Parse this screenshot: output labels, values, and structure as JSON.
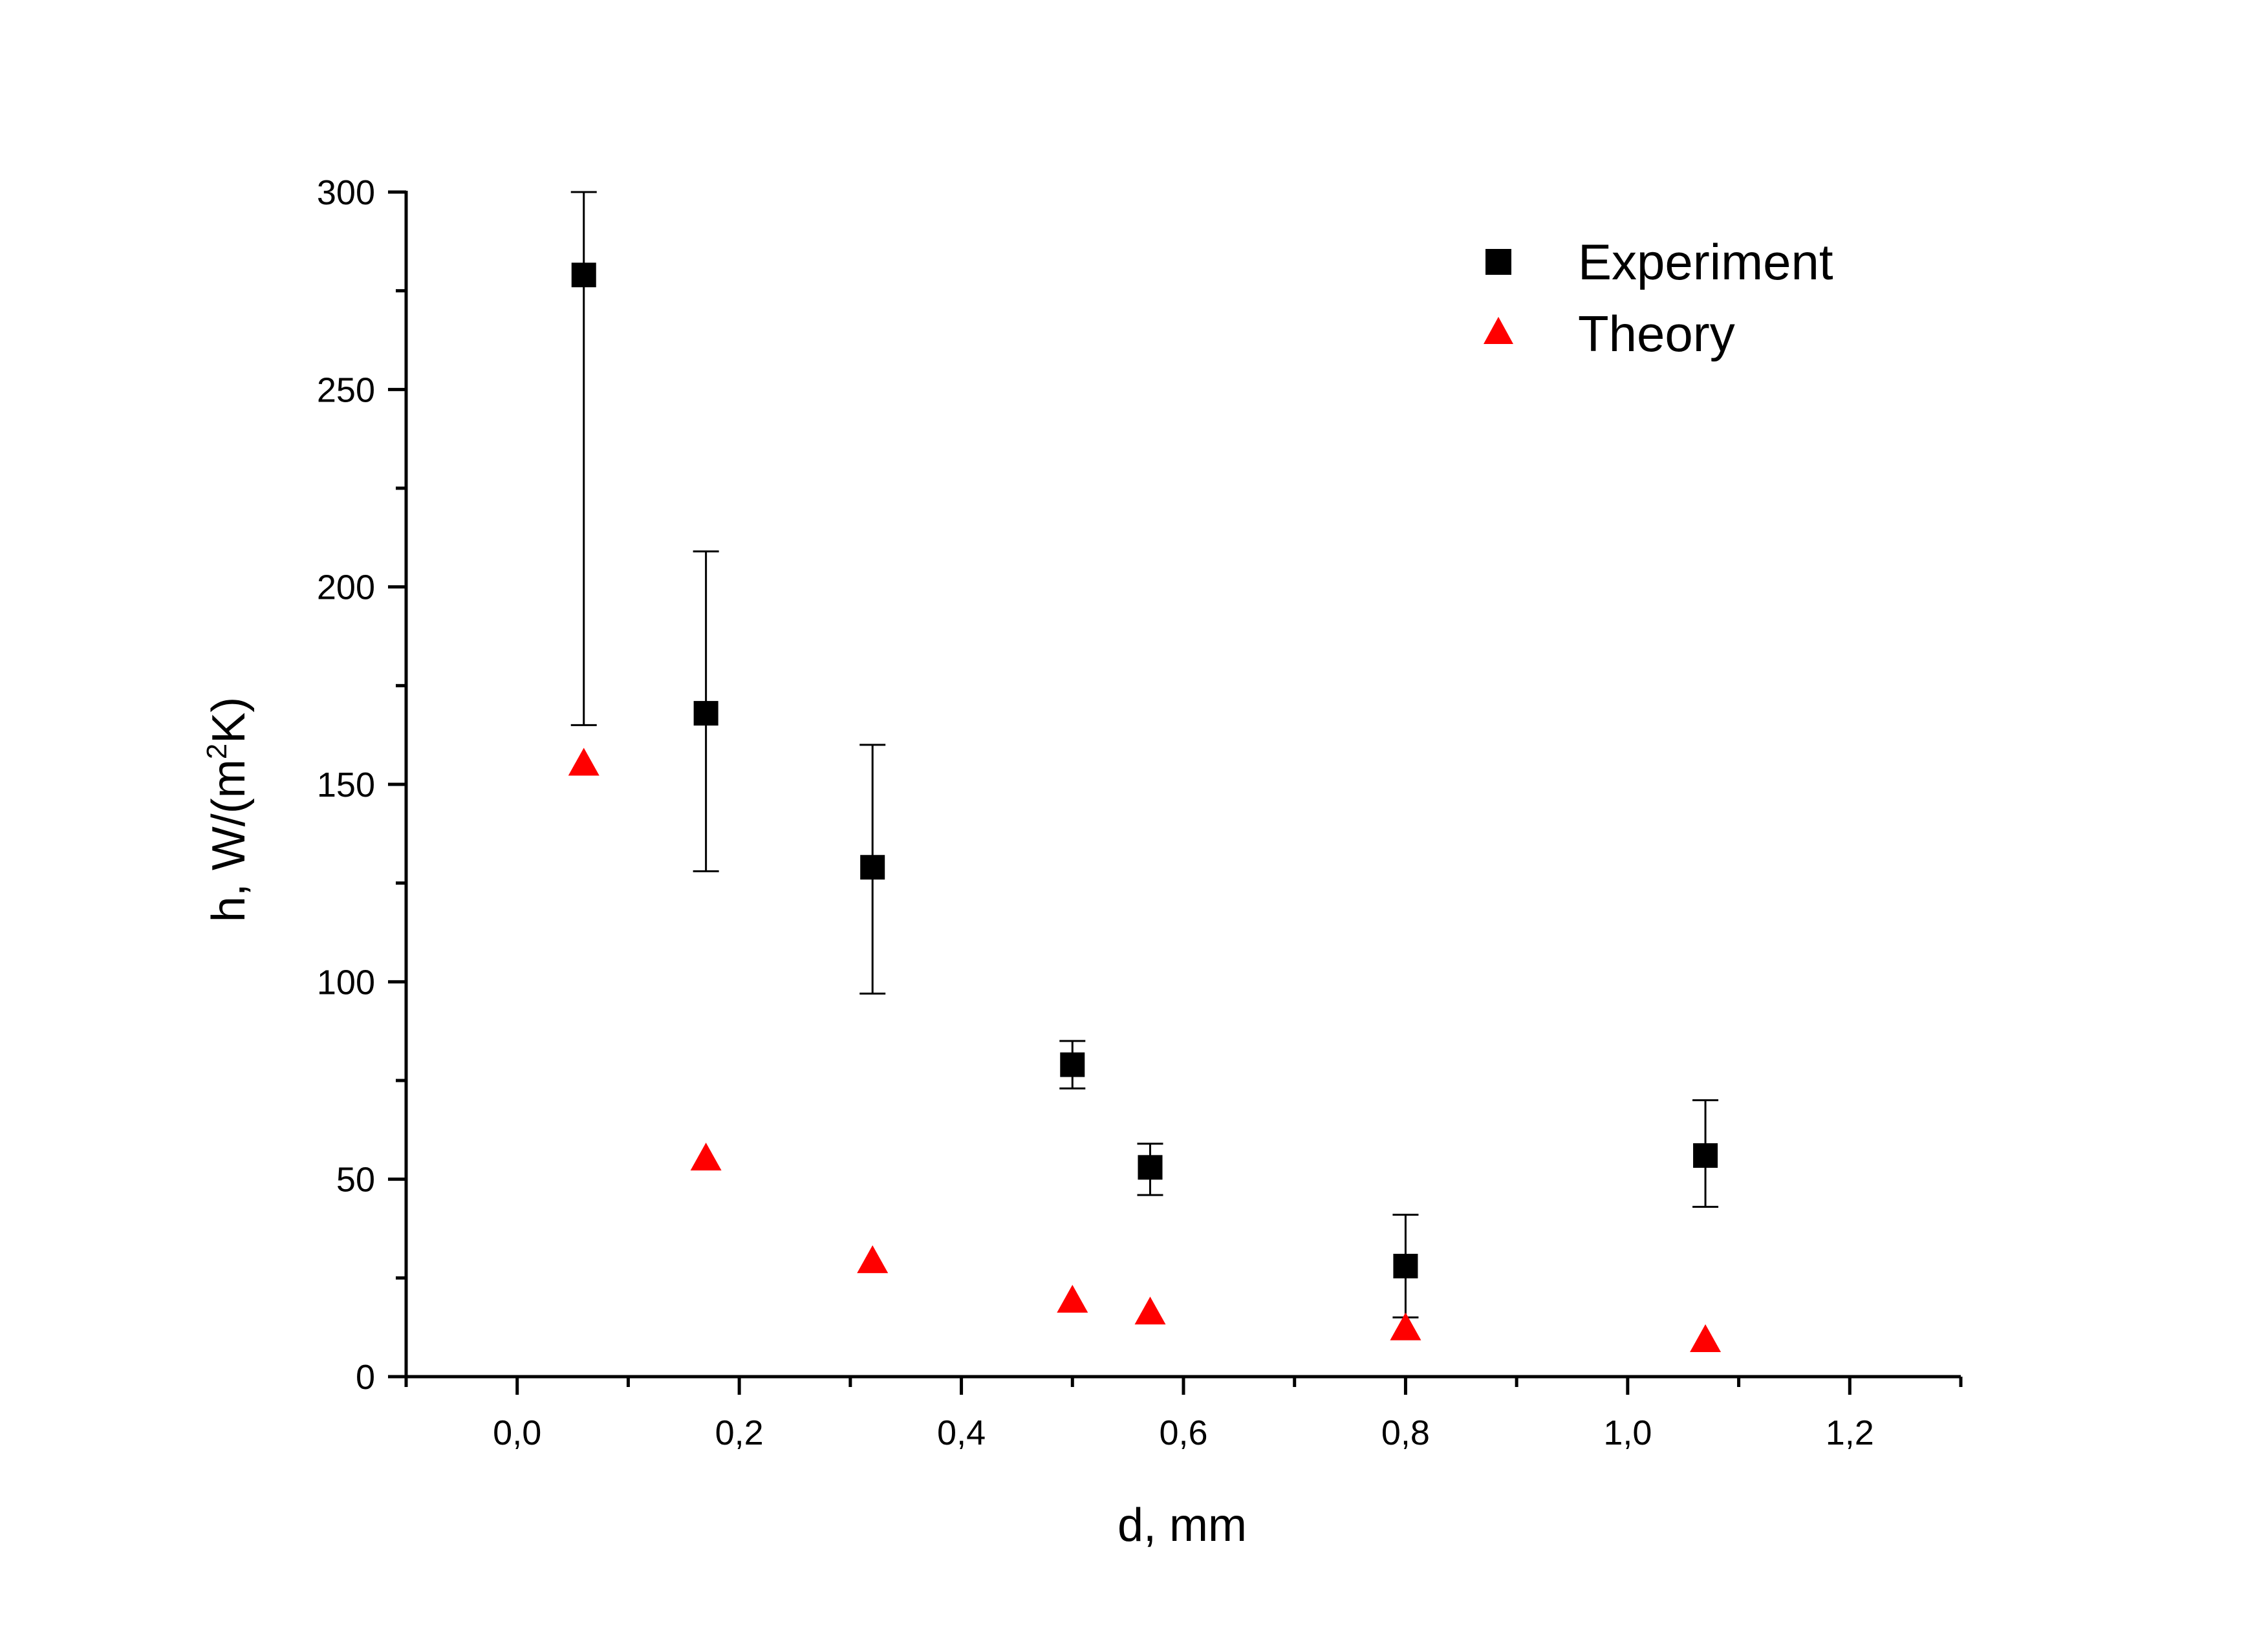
{
  "chart_data": {
    "type": "scatter",
    "xlabel": "d, mm",
    "ylabel": {
      "prefix": "h, W/(m",
      "sup": "2",
      "suffix": "K)"
    },
    "xlim": [
      -0.1,
      1.3
    ],
    "ylim": [
      0,
      300
    ],
    "x_ticks": [
      {
        "value": 0.0,
        "label": "0,0"
      },
      {
        "value": 0.2,
        "label": "0,2"
      },
      {
        "value": 0.4,
        "label": "0,4"
      },
      {
        "value": 0.6,
        "label": "0,6"
      },
      {
        "value": 0.8,
        "label": "0,8"
      },
      {
        "value": 1.0,
        "label": "1,0"
      },
      {
        "value": 1.2,
        "label": "1,2"
      }
    ],
    "y_ticks": [
      {
        "value": 0,
        "label": "0"
      },
      {
        "value": 50,
        "label": "50"
      },
      {
        "value": 100,
        "label": "100"
      },
      {
        "value": 150,
        "label": "150"
      },
      {
        "value": 200,
        "label": "200"
      },
      {
        "value": 250,
        "label": "250"
      },
      {
        "value": 300,
        "label": "300"
      }
    ],
    "grid": false,
    "legend_position": "top-right",
    "series": [
      {
        "name": "Experiment",
        "marker": "square",
        "color": "#000000",
        "points": [
          {
            "x": 0.06,
            "y": 279,
            "err_low": 165,
            "err_high": 300
          },
          {
            "x": 0.17,
            "y": 168,
            "err_low": 128,
            "err_high": 209
          },
          {
            "x": 0.32,
            "y": 129,
            "err_low": 97,
            "err_high": 160
          },
          {
            "x": 0.5,
            "y": 79,
            "err_low": 73,
            "err_high": 85
          },
          {
            "x": 0.57,
            "y": 53,
            "err_low": 46,
            "err_high": 59
          },
          {
            "x": 0.8,
            "y": 28,
            "err_low": 15,
            "err_high": 41
          },
          {
            "x": 1.07,
            "y": 56,
            "err_low": 43,
            "err_high": 70
          }
        ]
      },
      {
        "name": "Theory",
        "marker": "triangle",
        "color": "#ff0000",
        "points": [
          {
            "x": 0.06,
            "y": 155
          },
          {
            "x": 0.17,
            "y": 55
          },
          {
            "x": 0.32,
            "y": 29
          },
          {
            "x": 0.5,
            "y": 19
          },
          {
            "x": 0.57,
            "y": 16
          },
          {
            "x": 0.8,
            "y": 12
          },
          {
            "x": 1.07,
            "y": 9
          }
        ]
      }
    ]
  }
}
